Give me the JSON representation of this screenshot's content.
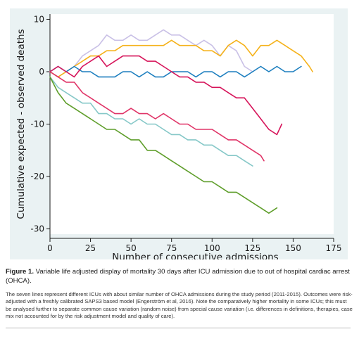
{
  "chart_data": {
    "type": "line",
    "title": "",
    "xlabel": "Number of consecutive admissions",
    "ylabel": "Cumulative expected - observed deaths",
    "xlim": [
      0,
      175
    ],
    "ylim": [
      -31,
      11
    ],
    "xticks": [
      0,
      25,
      50,
      75,
      100,
      125,
      150,
      175
    ],
    "yticks": [
      10,
      0,
      -10,
      -20,
      -30
    ],
    "grid": false,
    "legend": "none",
    "series": [
      {
        "color": "#c9c0e6",
        "x": [
          0,
          5,
          10,
          15,
          20,
          25,
          30,
          35,
          40,
          45,
          50,
          55,
          60,
          65,
          70,
          75,
          80,
          85,
          90,
          95,
          100,
          105,
          110,
          115,
          120,
          125
        ],
        "y": [
          0,
          -1,
          0,
          1,
          3,
          4,
          5,
          7,
          6,
          6,
          7,
          6,
          6,
          7,
          8,
          7,
          7,
          6,
          5,
          6,
          5,
          3,
          5,
          4,
          1,
          0
        ]
      },
      {
        "color": "#f5b21a",
        "x": [
          0,
          5,
          10,
          15,
          20,
          25,
          30,
          35,
          40,
          45,
          50,
          55,
          60,
          65,
          70,
          75,
          80,
          85,
          90,
          95,
          100,
          105,
          110,
          115,
          120,
          125,
          130,
          135,
          140,
          145,
          150,
          155,
          160,
          162
        ],
        "y": [
          0,
          -1,
          0,
          1,
          2,
          3,
          3,
          4,
          4,
          5,
          5,
          5,
          5,
          5,
          5,
          6,
          5,
          5,
          5,
          4,
          4,
          3,
          5,
          6,
          5,
          3,
          5,
          5,
          6,
          5,
          4,
          3,
          1,
          0
        ]
      },
      {
        "color": "#1d7fbf",
        "x": [
          0,
          5,
          10,
          15,
          20,
          25,
          30,
          35,
          40,
          45,
          50,
          55,
          60,
          65,
          70,
          75,
          80,
          85,
          90,
          95,
          100,
          105,
          110,
          115,
          120,
          125,
          130,
          135,
          140,
          145,
          150,
          155
        ],
        "y": [
          0,
          1,
          0,
          1,
          0,
          0,
          -1,
          -1,
          -1,
          0,
          0,
          -1,
          0,
          -1,
          -1,
          0,
          0,
          0,
          -1,
          0,
          0,
          -1,
          0,
          0,
          -1,
          0,
          1,
          0,
          1,
          0,
          0,
          1
        ]
      },
      {
        "color": "#d6145a",
        "x": [
          0,
          5,
          10,
          15,
          20,
          25,
          30,
          35,
          40,
          45,
          50,
          55,
          60,
          65,
          70,
          75,
          80,
          85,
          90,
          95,
          100,
          105,
          110,
          115,
          120,
          125,
          130,
          135,
          140,
          143
        ],
        "y": [
          0,
          1,
          0,
          -1,
          1,
          2,
          3,
          1,
          2,
          3,
          3,
          3,
          2,
          2,
          1,
          0,
          -1,
          -1,
          -2,
          -2,
          -3,
          -3,
          -4,
          -5,
          -5,
          -7,
          -9,
          -11,
          -12,
          -10
        ]
      },
      {
        "color": "#e03568",
        "x": [
          0,
          5,
          10,
          15,
          20,
          25,
          30,
          35,
          40,
          45,
          50,
          55,
          60,
          65,
          70,
          75,
          80,
          85,
          90,
          95,
          100,
          105,
          110,
          115,
          120,
          125,
          130,
          132
        ],
        "y": [
          0,
          -1,
          -2,
          -2,
          -4,
          -5,
          -6,
          -7,
          -8,
          -8,
          -7,
          -8,
          -8,
          -9,
          -8,
          -9,
          -10,
          -10,
          -11,
          -11,
          -11,
          -12,
          -13,
          -13,
          -14,
          -15,
          -16,
          -17
        ]
      },
      {
        "color": "#86c8c8",
        "x": [
          0,
          5,
          10,
          15,
          20,
          25,
          30,
          35,
          40,
          45,
          50,
          55,
          60,
          65,
          70,
          75,
          80,
          85,
          90,
          95,
          100,
          105,
          110,
          115,
          120,
          125
        ],
        "y": [
          -1,
          -3,
          -4,
          -5,
          -6,
          -6,
          -8,
          -8,
          -9,
          -9,
          -10,
          -9,
          -10,
          -10,
          -11,
          -12,
          -12,
          -13,
          -13,
          -14,
          -14,
          -15,
          -16,
          -16,
          -17,
          -18
        ]
      },
      {
        "color": "#5f9e2b",
        "x": [
          0,
          5,
          10,
          15,
          20,
          25,
          30,
          35,
          40,
          45,
          50,
          55,
          60,
          65,
          70,
          75,
          80,
          85,
          90,
          95,
          100,
          105,
          110,
          115,
          120,
          125,
          130,
          135,
          140
        ],
        "y": [
          -1,
          -4,
          -6,
          -7,
          -8,
          -9,
          -10,
          -11,
          -11,
          -12,
          -13,
          -13,
          -15,
          -15,
          -16,
          -17,
          -18,
          -19,
          -20,
          -21,
          -21,
          -22,
          -23,
          -23,
          -24,
          -25,
          -26,
          -27,
          -26
        ]
      }
    ]
  },
  "caption": {
    "title_prefix": "Figure 1.",
    "title_text": "Variable life adjusted display of mortality 30 days after ICU admission due to out of hospital cardiac arrest (OHCA).",
    "body": "The seven lines represent different ICUs with about similar number of OHCA admissions during the study period (2011-2015). Outcomes were risk-adjusted with a freshly calibrated SAPS3 based model (Engerström et al, 2016). Note the comparatively higher mortality in some ICUs; this must be analysed further to separate common cause variation (random noise) from special cause variation (i.e. differences in definitions, therapies, case mix not accounted for by the risk adjustment model and quality of care)."
  }
}
